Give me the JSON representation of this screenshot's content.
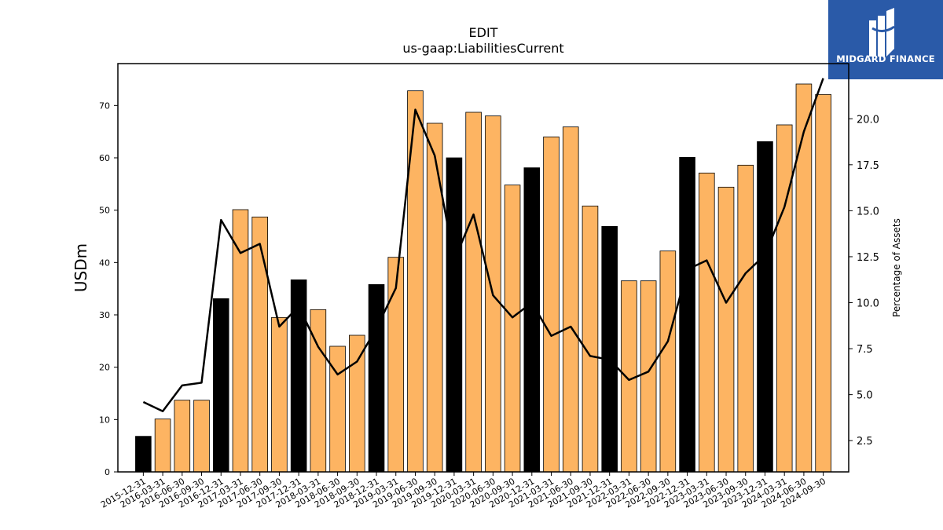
{
  "logo": {
    "text": "MIDGARD FINANCE",
    "icon": "midgard-logo-icon"
  },
  "chart_data": {
    "type": "bar",
    "title": "EDIT",
    "subtitle": "us-gaap:LiabilitiesCurrent",
    "ylabel": "USDm",
    "y2label": "Percentage of Assets",
    "ylim": [
      0,
      78
    ],
    "y2lim": [
      0.8,
      23.0
    ],
    "yticks": [
      0,
      10,
      20,
      30,
      40,
      50,
      60,
      70
    ],
    "y2ticks": [
      2.5,
      5.0,
      7.5,
      10.0,
      12.5,
      15.0,
      17.5,
      20.0
    ],
    "grid": false,
    "colors": {
      "bar_q4": "#000000",
      "bar_other": "#fdb462",
      "line": "#000000"
    },
    "categories": [
      "2015-12-31",
      "2016-03-31",
      "2016-06-30",
      "2016-09-30",
      "2016-12-31",
      "2017-03-31",
      "2017-06-30",
      "2017-09-30",
      "2017-12-31",
      "2018-03-31",
      "2018-06-30",
      "2018-09-30",
      "2018-12-31",
      "2019-03-31",
      "2019-06-30",
      "2019-09-30",
      "2019-12-31",
      "2020-03-31",
      "2020-06-30",
      "2020-09-30",
      "2020-12-31",
      "2021-03-31",
      "2021-06-30",
      "2021-09-30",
      "2021-12-31",
      "2022-03-31",
      "2022-06-30",
      "2022-09-30",
      "2022-12-31",
      "2023-03-31",
      "2023-06-30",
      "2023-09-30",
      "2023-12-31",
      "2024-03-31",
      "2024-06-30",
      "2024-09-30"
    ],
    "series": [
      {
        "type": "bar",
        "axis": "left",
        "values": [
          6.8,
          10.1,
          13.7,
          13.7,
          33.1,
          50.1,
          48.7,
          29.5,
          36.7,
          31.0,
          24.0,
          26.1,
          35.8,
          41.0,
          72.8,
          66.6,
          60.0,
          68.7,
          68.0,
          54.8,
          58.1,
          64.0,
          65.9,
          50.8,
          46.9,
          36.5,
          36.5,
          42.2,
          60.1,
          57.1,
          54.4,
          58.6,
          63.1,
          66.3,
          74.1,
          72.1
        ]
      },
      {
        "type": "line",
        "axis": "right",
        "values": [
          4.6,
          4.1,
          5.5,
          5.65,
          14.5,
          12.7,
          13.2,
          8.7,
          9.8,
          7.6,
          6.1,
          6.8,
          8.6,
          10.8,
          20.5,
          18.0,
          12.3,
          14.8,
          10.4,
          9.2,
          10.0,
          8.2,
          8.7,
          7.1,
          6.9,
          5.8,
          6.25,
          7.9,
          11.8,
          12.3,
          10.0,
          11.6,
          12.6,
          15.2,
          19.3,
          22.2
        ]
      }
    ]
  }
}
